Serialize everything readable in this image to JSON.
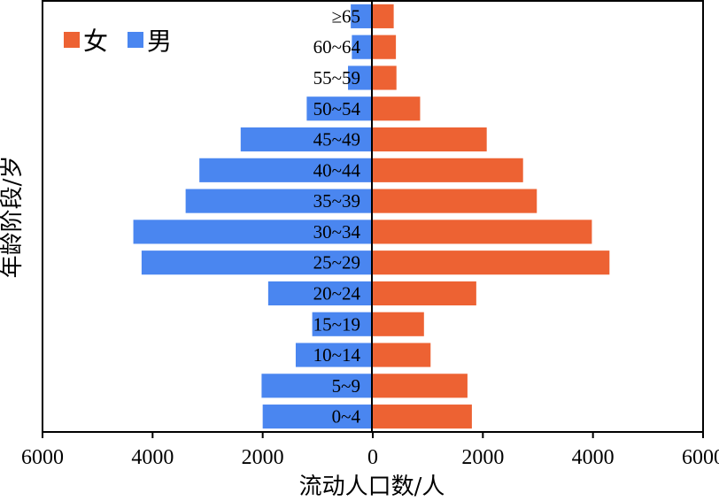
{
  "chart_data": {
    "type": "bar",
    "orientation": "horizontal-population-pyramid",
    "categories": [
      "0~4",
      "5~9",
      "10~14",
      "15~19",
      "20~24",
      "25~29",
      "30~34",
      "35~39",
      "40~44",
      "45~49",
      "50~54",
      "55~59",
      "60~64",
      "≥65"
    ],
    "series": [
      {
        "name": "女",
        "side": "right",
        "color": "#ed6233",
        "values": [
          1800,
          1720,
          1050,
          930,
          1880,
          4300,
          3980,
          2980,
          2730,
          2070,
          860,
          430,
          420,
          380
        ]
      },
      {
        "name": "男",
        "side": "left",
        "color": "#4a86f0",
        "values": [
          2000,
          2020,
          1400,
          1100,
          1900,
          4200,
          4350,
          3400,
          3150,
          2400,
          1200,
          450,
          380,
          400
        ]
      }
    ],
    "xlim": [
      -6000,
      6000
    ],
    "x_ticks": [
      -6000,
      -4000,
      -2000,
      0,
      2000,
      4000,
      6000
    ],
    "x_tick_labels": [
      "6000",
      "4000",
      "2000",
      "0",
      "2000",
      "4000",
      "6000"
    ],
    "xlabel": "流动人口数/人",
    "ylabel": "年龄阶段/岁",
    "legend": {
      "placement": "top-left",
      "entries": [
        "女",
        "男"
      ]
    },
    "grid": false
  }
}
